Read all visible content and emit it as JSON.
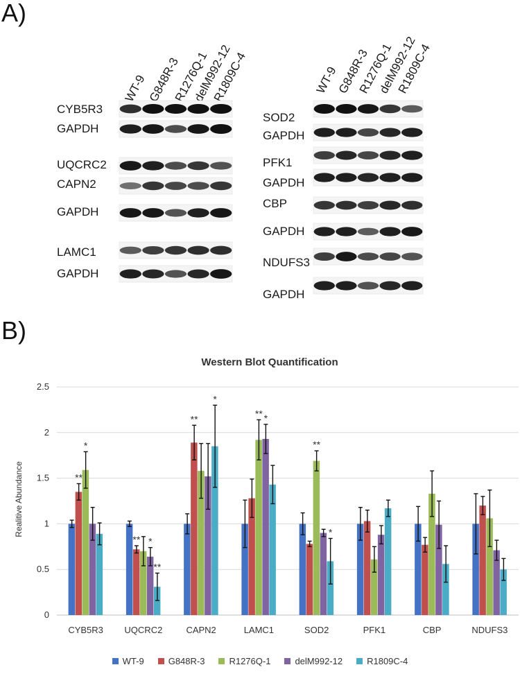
{
  "panels": {
    "a_label": "A)",
    "b_label": "B)"
  },
  "blots": {
    "left_lanes": [
      "WT-9",
      "G848R-3",
      "R1276Q-1",
      "delM992-12",
      "R1809C-4"
    ],
    "right_lanes": [
      "WT-9",
      "G848R-3",
      "R1276Q-1",
      "delM992-12",
      "R1809C-4"
    ],
    "left_labels": [
      "CYB5R3",
      "GAPDH",
      "UQCRC2",
      "CAPN2",
      "GAPDH",
      "LAMC1",
      "GAPDH"
    ],
    "right_labels": [
      "SOD2",
      "GAPDH",
      "PFK1",
      "GAPDH",
      "CBP",
      "GAPDH",
      "NDUFS3",
      "GAPDH"
    ]
  },
  "colors": {
    "series": [
      "#4472C4",
      "#C0504D",
      "#9BBB59",
      "#8064A2",
      "#4BACC6"
    ]
  },
  "chart_data": {
    "type": "bar",
    "title": "Western Blot Quantification",
    "ylabel": "Realitive Abundance",
    "xlabel": "",
    "ylim": [
      0,
      2.5
    ],
    "yticks": [
      "0",
      "0.5",
      "1",
      "1.5",
      "2",
      "2.5"
    ],
    "grid": true,
    "legend_position": "bottom",
    "categories": [
      "CYB5R3",
      "UQCRC2",
      "CAPN2",
      "LAMC1",
      "SOD2",
      "PFK1",
      "CBP",
      "NDUFS3"
    ],
    "series": [
      {
        "name": "WT-9",
        "values": [
          1.0,
          1.0,
          1.0,
          1.0,
          1.0,
          1.0,
          1.0,
          1.0
        ],
        "errors": [
          0.04,
          0.03,
          0.11,
          0.26,
          0.12,
          0.18,
          0.19,
          0.33
        ],
        "sig": [
          "",
          "",
          "",
          "",
          "",
          "",
          "",
          ""
        ]
      },
      {
        "name": "G848R-3",
        "values": [
          1.35,
          0.72,
          1.89,
          1.28,
          0.78,
          1.03,
          0.77,
          1.2
        ],
        "errors": [
          0.09,
          0.04,
          0.19,
          0.21,
          0.03,
          0.12,
          0.08,
          0.1
        ],
        "sig": [
          "**",
          "**",
          "**",
          "",
          "",
          "",
          "",
          ""
        ]
      },
      {
        "name": "R1276Q-1",
        "values": [
          1.59,
          0.7,
          1.58,
          1.92,
          1.69,
          0.61,
          1.33,
          1.06
        ],
        "errors": [
          0.2,
          0.16,
          0.3,
          0.22,
          0.11,
          0.14,
          0.25,
          0.31
        ],
        "sig": [
          "*",
          "",
          "",
          "**",
          "**",
          "",
          "",
          ""
        ]
      },
      {
        "name": "delM992-12",
        "values": [
          1.0,
          0.64,
          1.52,
          1.93,
          0.9,
          0.88,
          0.99,
          0.71
        ],
        "errors": [
          0.18,
          0.1,
          0.36,
          0.16,
          0.04,
          0.1,
          0.26,
          0.11
        ],
        "sig": [
          "",
          "*",
          "",
          "*",
          "",
          "",
          "",
          ""
        ]
      },
      {
        "name": "R1809C-4",
        "values": [
          0.89,
          0.31,
          1.85,
          1.43,
          0.59,
          1.17,
          0.56,
          0.5
        ],
        "errors": [
          0.12,
          0.15,
          0.45,
          0.21,
          0.25,
          0.09,
          0.2,
          0.12
        ],
        "sig": [
          "",
          "**",
          "*",
          "",
          "*",
          "",
          "",
          ""
        ]
      }
    ]
  }
}
